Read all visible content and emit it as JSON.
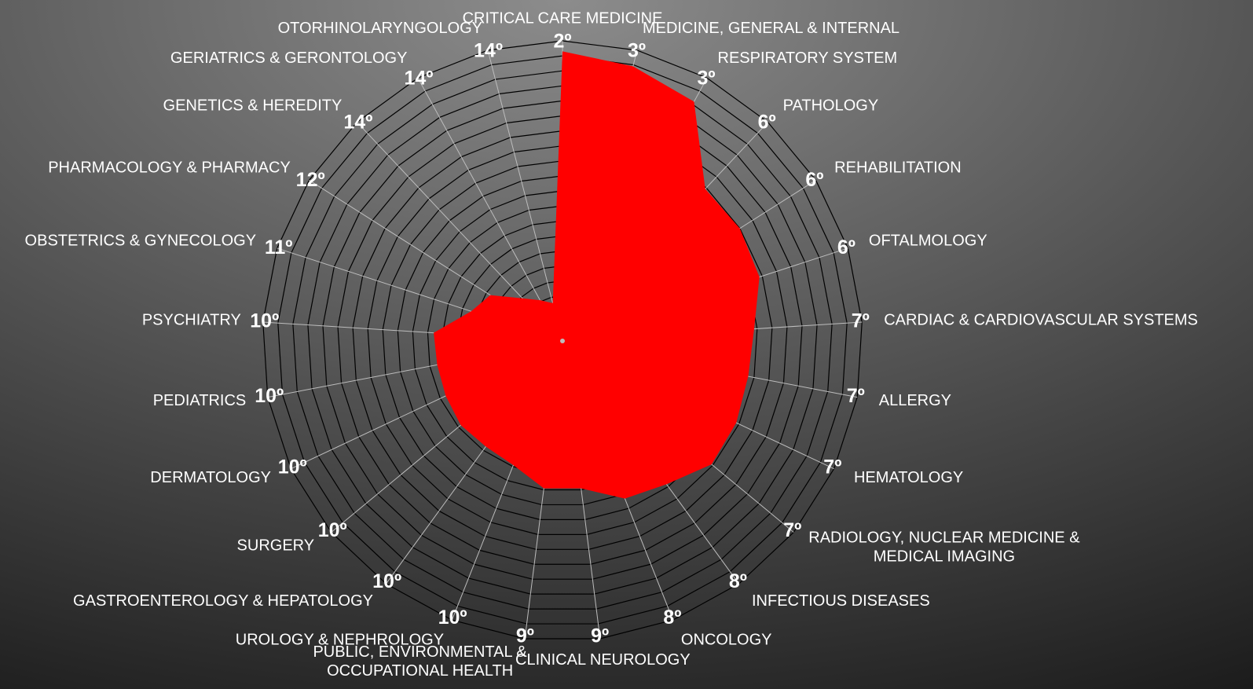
{
  "chart_data": {
    "type": "radar",
    "categories": [
      "CRITICAL CARE MEDICINE",
      "MEDICINE, GENERAL & INTERNAL",
      "RESPIRATORY SYSTEM",
      "PATHOLOGY",
      "REHABILITATION",
      "OFTALMOLOGY",
      "CARDIAC & CARDIOVASCULAR SYSTEMS",
      "ALLERGY",
      "HEMATOLOGY",
      [
        "RADIOLOGY, NUCLEAR MEDICINE &",
        "MEDICAL IMAGING"
      ],
      "INFECTIOUS DISEASES",
      "ONCOLOGY",
      "CLINICAL NEUROLOGY",
      [
        "PUBLIC, ENVIRONMENTAL &",
        "OCCUPATIONAL HEALTH"
      ],
      "UROLOGY & NEPHROLOGY",
      "GASTROENTEROLOGY & HEPATOLOGY",
      "SURGERY",
      "DERMATOLOGY",
      "PEDIATRICS",
      "PSYCHIATRY",
      "OBSTETRICS & GYNECOLOGY",
      "PHARMACOLOGY & PHARMACY",
      "GENETICS & HEREDITY",
      "GERIATRICS & GERONTOLOGY",
      "OTORHINOLARYNGOLOGY"
    ],
    "ranks": [
      "2º",
      "3º",
      "3º",
      "6º",
      "6º",
      "6º",
      "7º",
      "7º",
      "7º",
      "7º",
      "8º",
      "8º",
      "9º",
      "9º",
      "10º",
      "10º",
      "10º",
      "10º",
      "10º",
      "10º",
      "11º",
      "12º",
      "14º",
      "14º",
      "14º"
    ],
    "values": [
      19.3,
      18.9,
      18.2,
      13.9,
      14.0,
      13.8,
      12.8,
      12.6,
      12.8,
      12.9,
      11.8,
      11.3,
      9.9,
      9.9,
      8.9,
      8.7,
      8.8,
      8.6,
      8.5,
      8.6,
      6.4,
      5.7,
      3.9,
      3.1,
      2.6
    ],
    "color": "#ff0000",
    "ylim": [
      0,
      20
    ],
    "yticks": [
      1,
      2,
      3,
      4,
      5,
      6,
      7,
      8,
      9,
      10,
      11,
      12,
      13,
      14,
      15,
      16,
      17,
      18,
      19,
      20
    ],
    "grid": true
  }
}
